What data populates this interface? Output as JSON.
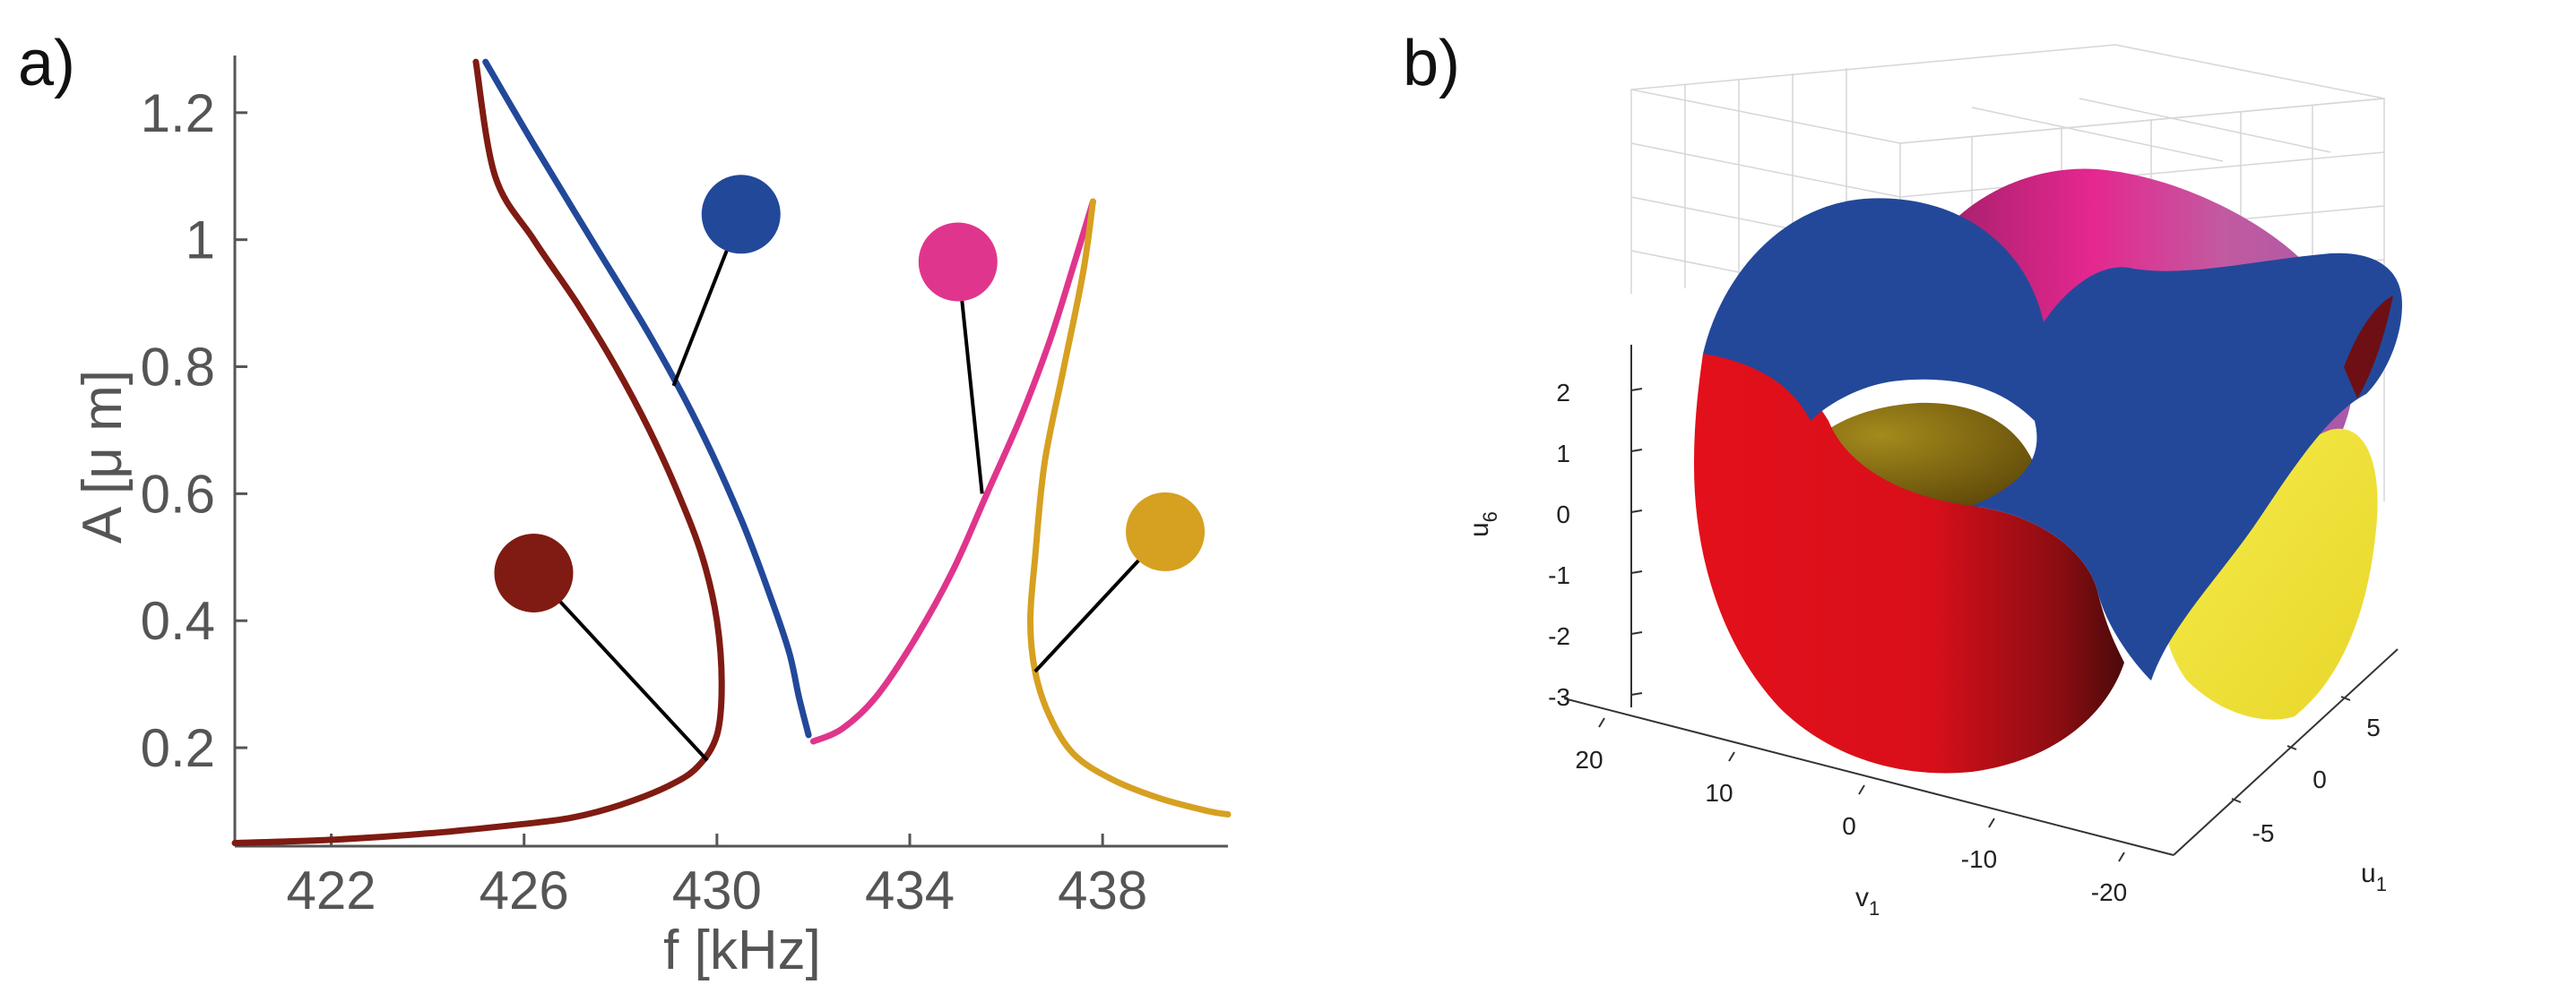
{
  "chart_data": [
    {
      "type": "line",
      "panel_label": "a)",
      "xlabel": "f [kHz]",
      "ylabel": "A [μ m]",
      "xlim": [
        420.0,
        440.6
      ],
      "ylim": [
        0.045,
        1.29
      ],
      "x_ticks": [
        422,
        426,
        430,
        434,
        438
      ],
      "y_ticks": [
        0.2,
        0.4,
        0.6,
        0.8,
        1,
        1.2
      ],
      "x_tick_labels": [
        "422",
        "426",
        "430",
        "434",
        "438"
      ],
      "y_tick_labels": [
        "0.2",
        "0.4",
        "0.6",
        "0.8",
        "1",
        "1.2"
      ],
      "grid": false,
      "series": [
        {
          "name": "dark-red branch",
          "color": "#7f1b12",
          "x": [
            420.0,
            422.0,
            424.0,
            426.0,
            427.0,
            428.0,
            429.0,
            429.6,
            430.0,
            430.1,
            430.0,
            429.7,
            429.2,
            428.6,
            427.9,
            427.1,
            426.2,
            425.4,
            425.0
          ],
          "y": [
            0.05,
            0.055,
            0.065,
            0.08,
            0.09,
            0.11,
            0.14,
            0.17,
            0.22,
            0.3,
            0.4,
            0.5,
            0.6,
            0.7,
            0.8,
            0.9,
            1.0,
            1.1,
            1.28
          ],
          "marker": {
            "x": 426.2,
            "y": 0.475
          },
          "pointer_to": {
            "x": 429.8,
            "y": 0.18
          }
        },
        {
          "name": "blue branch",
          "color": "#22489a",
          "x": [
            425.2,
            426.2,
            427.4,
            428.6,
            429.6,
            430.5,
            431.1,
            431.5,
            431.7,
            431.9
          ],
          "y": [
            1.28,
            1.15,
            1.0,
            0.85,
            0.71,
            0.56,
            0.44,
            0.35,
            0.28,
            0.22
          ],
          "marker": {
            "x": 430.5,
            "y": 1.04
          },
          "pointer_to": {
            "x": 429.1,
            "y": 0.77
          }
        },
        {
          "name": "pink branch",
          "color": "#e0358c",
          "x": [
            432.0,
            432.6,
            433.3,
            434.1,
            434.9,
            435.6,
            436.3,
            436.9,
            437.4,
            437.8
          ],
          "y": [
            0.21,
            0.23,
            0.28,
            0.37,
            0.48,
            0.6,
            0.72,
            0.84,
            0.96,
            1.06
          ],
          "marker": {
            "x": 435.0,
            "y": 0.965
          },
          "pointer_to": {
            "x": 435.5,
            "y": 0.6
          }
        },
        {
          "name": "gold branch",
          "color": "#d6a020",
          "x": [
            437.8,
            437.6,
            437.2,
            436.8,
            436.6,
            436.5,
            436.6,
            436.9,
            437.4,
            438.2,
            439.2,
            440.2,
            440.6
          ],
          "y": [
            1.06,
            0.95,
            0.8,
            0.65,
            0.5,
            0.4,
            0.32,
            0.25,
            0.19,
            0.15,
            0.12,
            0.1,
            0.095
          ],
          "marker": {
            "x": 439.3,
            "y": 0.54
          },
          "pointer_to": {
            "x": 436.6,
            "y": 0.32
          }
        }
      ]
    },
    {
      "type": "surface3d",
      "panel_label": "b)",
      "xlabel": "v",
      "xlabel_sub": "1",
      "ylabel": "u",
      "ylabel_sub": "1",
      "zlabel": "u",
      "zlabel_sub": "6",
      "x_ticks": [
        "20",
        "10",
        "0",
        "-10",
        "-20"
      ],
      "y_ticks": [
        "-5",
        "0",
        "5"
      ],
      "z_ticks": [
        "2",
        "1",
        "0",
        "-1",
        "-2",
        "-3"
      ],
      "grid": true,
      "surfaces": [
        {
          "name": "blue sheet",
          "color": "#23489a"
        },
        {
          "name": "magenta sheet",
          "color": "#c73a8a"
        },
        {
          "name": "red sheet",
          "color": "#e00f1a"
        },
        {
          "name": "yellow sheet",
          "color": "#f1e43a"
        },
        {
          "name": "olive sheet",
          "color": "#8a7016"
        }
      ]
    }
  ]
}
